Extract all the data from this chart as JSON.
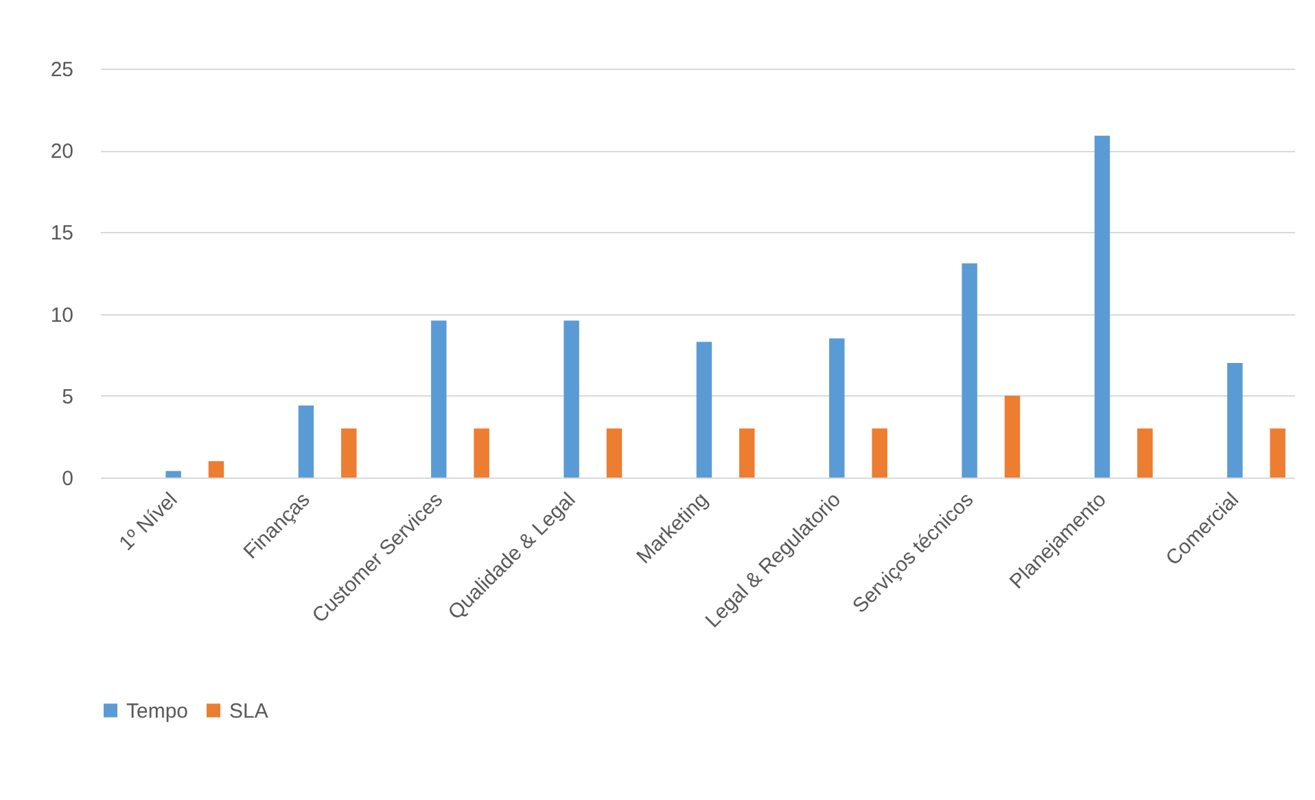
{
  "chart_data": {
    "type": "bar",
    "categories": [
      "1º Nível",
      "Finanças",
      "Customer Services",
      "Qualidade & Legal",
      "Marketing",
      "Legal & Regulatorio",
      "Serviços técnicos",
      "Planejamento",
      "Comercial"
    ],
    "series": [
      {
        "name": "Tempo",
        "color": "#5b9bd5",
        "values": [
          0.4,
          4.4,
          9.6,
          9.6,
          8.3,
          8.5,
          13.1,
          20.9,
          7.0
        ]
      },
      {
        "name": "SLA",
        "color": "#ed7d31",
        "values": [
          1,
          3,
          3,
          3,
          3,
          3,
          5,
          3,
          3
        ]
      }
    ],
    "ylim": [
      0,
      25
    ],
    "yticks": [
      0,
      5,
      10,
      15,
      20,
      25
    ],
    "grid": "y",
    "legend": "bottom"
  }
}
